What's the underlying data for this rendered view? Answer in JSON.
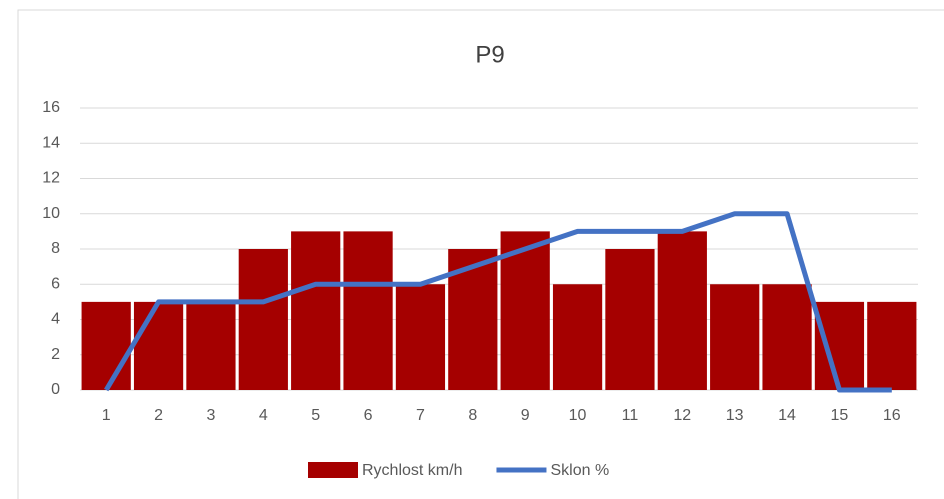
{
  "chart_data": {
    "type": "combo",
    "title": "P9",
    "categories": [
      "1",
      "2",
      "3",
      "4",
      "5",
      "6",
      "7",
      "8",
      "9",
      "10",
      "11",
      "12",
      "13",
      "14",
      "15",
      "16"
    ],
    "series": [
      {
        "name": "Rychlost km/h",
        "type": "bar",
        "color": "#a50000",
        "values": [
          5,
          5,
          5,
          8,
          9,
          9,
          6,
          8,
          9,
          6,
          8,
          9,
          6,
          6,
          5,
          5
        ]
      },
      {
        "name": "Sklon %",
        "type": "line",
        "color": "#4472c4",
        "values": [
          0,
          5,
          5,
          5,
          6,
          6,
          6,
          7,
          8,
          9,
          9,
          9,
          10,
          10,
          0,
          0
        ]
      }
    ],
    "ylim": [
      0,
      16
    ],
    "yticks": [
      0,
      2,
      4,
      6,
      8,
      10,
      12,
      14,
      16
    ],
    "grid": true,
    "legend": "bottom"
  }
}
